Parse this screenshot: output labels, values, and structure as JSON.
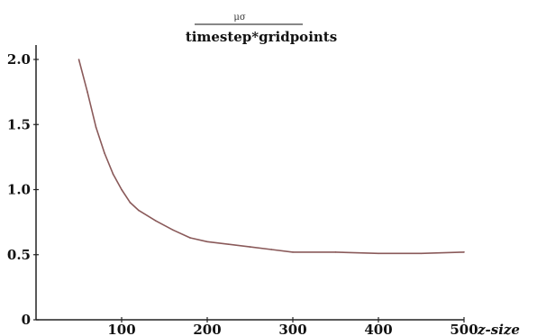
{
  "chart_data": {
    "type": "line",
    "title_numerator": "μσ",
    "title_denominator": "timestep*gridpoints",
    "xlabel": "z-size",
    "ylabel": "",
    "xlim": [
      0,
      500
    ],
    "ylim": [
      0,
      2.0
    ],
    "x_ticks": [
      "100",
      "200",
      "300",
      "400",
      "500"
    ],
    "y_ticks": [
      "0",
      "0.5",
      "1.0",
      "1.5",
      "2.0"
    ],
    "grid": false,
    "line_color": "#8a5a5a",
    "series": [
      {
        "x": [
          50,
          60,
          70,
          80,
          90,
          100,
          110,
          120,
          140,
          160,
          180,
          200,
          225,
          250,
          275,
          300,
          350,
          400,
          450,
          500
        ],
        "y": [
          2.0,
          1.75,
          1.48,
          1.28,
          1.12,
          1.0,
          0.9,
          0.84,
          0.76,
          0.69,
          0.63,
          0.6,
          0.58,
          0.56,
          0.54,
          0.52,
          0.52,
          0.51,
          0.51,
          0.52
        ]
      }
    ]
  }
}
